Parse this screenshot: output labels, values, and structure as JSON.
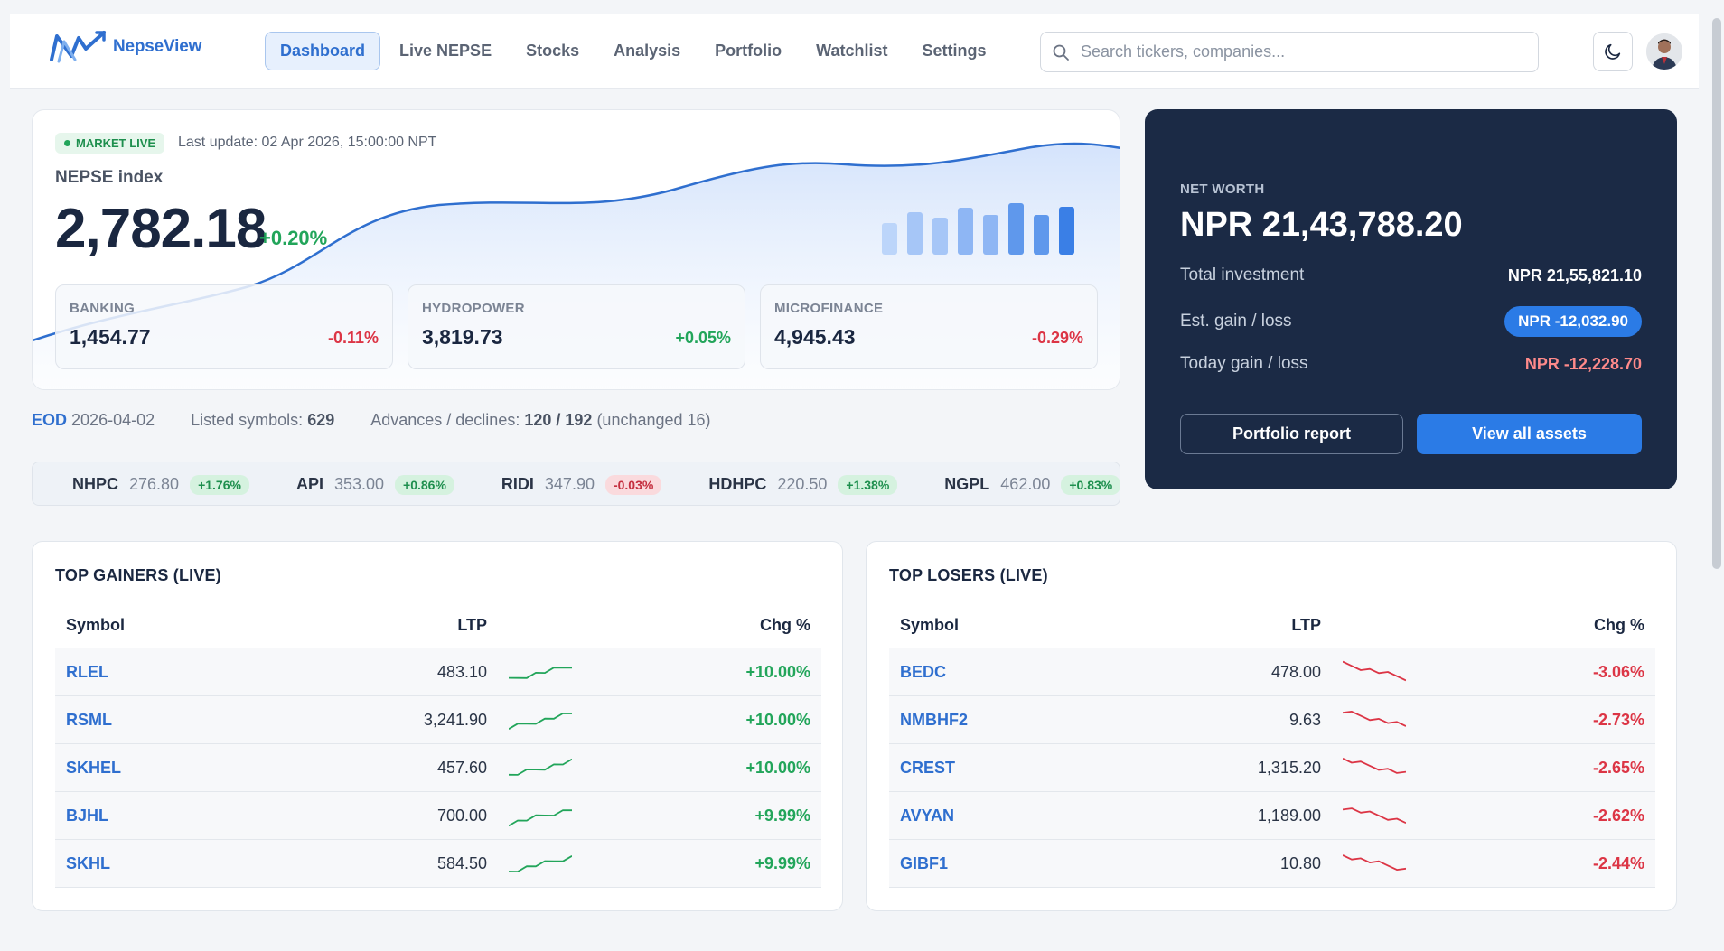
{
  "app": {
    "name": "NepseView"
  },
  "nav": {
    "items": [
      {
        "label": "Dashboard",
        "active": true
      },
      {
        "label": "Live NEPSE"
      },
      {
        "label": "Stocks"
      },
      {
        "label": "Analysis"
      },
      {
        "label": "Portfolio"
      },
      {
        "label": "Watchlist"
      },
      {
        "label": "Settings"
      }
    ]
  },
  "search": {
    "placeholder": "Search tickers, companies...",
    "value": ""
  },
  "icons": {
    "search": "search-icon",
    "theme": "moon-icon",
    "avatar": "user-avatar"
  },
  "market": {
    "status": "MARKET LIVE",
    "last_update": "Last update: 02 Apr 2026, 15:00:00 NPT",
    "index_label": "NEPSE index",
    "index_value": "2,782.18",
    "index_change": "+0.20%",
    "sectors": [
      {
        "name": "BANKING",
        "value": "1,454.77",
        "change": "-0.11%",
        "direction": "down"
      },
      {
        "name": "HYDROPOWER",
        "value": "3,819.73",
        "change": "+0.05%",
        "direction": "up"
      },
      {
        "name": "MICROFINANCE",
        "value": "4,945.43",
        "change": "-0.29%",
        "direction": "down"
      }
    ]
  },
  "networth": {
    "label": "NET WORTH",
    "value": "NPR 21,43,788.20",
    "rows": [
      {
        "label": "Total investment",
        "value": "NPR 21,55,821.10"
      },
      {
        "label": "Est. gain / loss",
        "value": "NPR -12,032.90"
      },
      {
        "label": "Today gain / loss",
        "value": "NPR -12,228.70"
      }
    ],
    "report_button": "Portfolio report",
    "assets_button": "View all assets"
  },
  "eod": {
    "label": "EOD",
    "date": "2026-04-02",
    "listed_label": "Listed symbols:",
    "listed_value": "629",
    "adv_label": "Advances / declines:",
    "adv_value": "120 / 192",
    "unchanged": "(unchanged 16)"
  },
  "ticker": [
    {
      "symbol": "NHPC",
      "price": "276.80",
      "change": "+1.76%",
      "direction": "up"
    },
    {
      "symbol": "API",
      "price": "353.00",
      "change": "+0.86%",
      "direction": "up"
    },
    {
      "symbol": "RIDI",
      "price": "347.90",
      "change": "-0.03%",
      "direction": "down"
    },
    {
      "symbol": "HDHPC",
      "price": "220.50",
      "change": "+1.38%",
      "direction": "up"
    },
    {
      "symbol": "NGPL",
      "price": "462.00",
      "change": "+0.83%",
      "direction": "up"
    }
  ],
  "gainers": {
    "title": "TOP GAINERS (LIVE)",
    "columns": [
      "Symbol",
      "LTP",
      "Chg %"
    ],
    "rows": [
      {
        "symbol": "RLEL",
        "ltp": "483.10",
        "change": "+10.00%"
      },
      {
        "symbol": "RSML",
        "ltp": "3,241.90",
        "change": "+10.00%"
      },
      {
        "symbol": "SKHEL",
        "ltp": "457.60",
        "change": "+10.00%"
      },
      {
        "symbol": "BJHL",
        "ltp": "700.00",
        "change": "+9.99%"
      },
      {
        "symbol": "SKHL",
        "ltp": "584.50",
        "change": "+9.99%"
      }
    ]
  },
  "losers": {
    "title": "TOP LOSERS (LIVE)",
    "columns": [
      "Symbol",
      "LTP",
      "Chg %"
    ],
    "rows": [
      {
        "symbol": "BEDC",
        "ltp": "478.00",
        "change": "-3.06%"
      },
      {
        "symbol": "NMBHF2",
        "ltp": "9.63",
        "change": "-2.73%"
      },
      {
        "symbol": "CREST",
        "ltp": "1,315.20",
        "change": "-2.65%"
      },
      {
        "symbol": "AVYAN",
        "ltp": "1,189.00",
        "change": "-2.62%"
      },
      {
        "symbol": "GIBF1",
        "ltp": "10.80",
        "change": "-2.44%"
      }
    ]
  },
  "colors": {
    "accent": "#2f6fcf",
    "positive": "#22a55a",
    "negative": "#dc3545",
    "card_dark": "#1b2a45",
    "primary_button": "#2b7be6"
  }
}
